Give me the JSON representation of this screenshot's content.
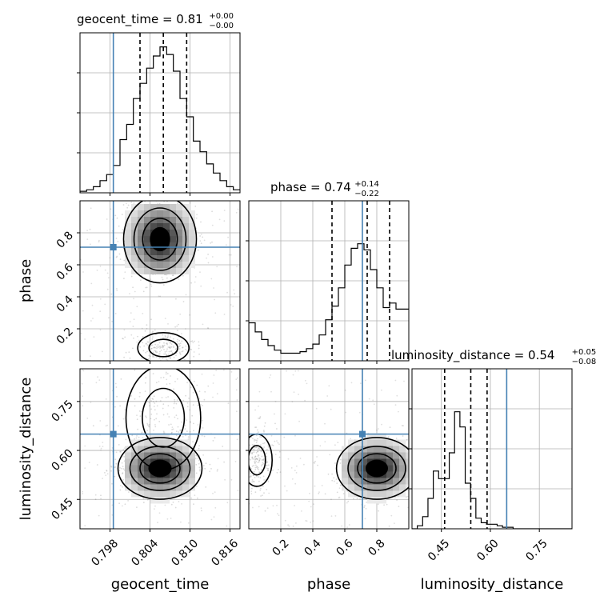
{
  "colors": {
    "truth": "#4682b4",
    "hist": "#000000",
    "grid": "#b0b0b0",
    "scatter": "#555555"
  },
  "chart_data": {
    "type": "corner",
    "grid": true,
    "truths": {
      "geocent_time": 0.7985,
      "phase": 0.71,
      "luminosity_distance": 0.65
    },
    "params": [
      {
        "name": "geocent_time",
        "xlabel": "geocent_time",
        "title_prefix": "geocent_time = ",
        "title_value": "0.81",
        "title_plus": "+0.00",
        "title_minus": "−0.00",
        "range": [
          0.7935,
          0.8175
        ],
        "ticks": [
          0.798,
          0.804,
          0.81,
          0.816
        ],
        "tick_labels": [
          "0.798",
          "0.804",
          "0.810",
          "0.816"
        ],
        "quantiles": [
          0.8025,
          0.806,
          0.8095
        ],
        "hist": {
          "start": 0.7935,
          "bin": 0.001,
          "counts": [
            0.01,
            0.02,
            0.04,
            0.08,
            0.12,
            0.18,
            0.35,
            0.45,
            0.62,
            0.72,
            0.82,
            0.9,
            0.96,
            0.91,
            0.8,
            0.62,
            0.5,
            0.34,
            0.27,
            0.19,
            0.13,
            0.08,
            0.04,
            0.02
          ]
        }
      },
      {
        "name": "phase",
        "xlabel": "phase",
        "ylabel": "phase",
        "title_prefix": "phase = ",
        "title_value": "0.74",
        "title_plus": "+0.14",
        "title_minus": "−0.22",
        "range": [
          0.0,
          1.0
        ],
        "ticks": [
          0.2,
          0.4,
          0.6,
          0.8
        ],
        "tick_labels": [
          "0.2",
          "0.4",
          "0.6",
          "0.8"
        ],
        "quantiles": [
          0.52,
          0.74,
          0.88
        ],
        "hist": {
          "start": 0.0,
          "bin": 0.04,
          "counts": [
            0.25,
            0.19,
            0.14,
            0.1,
            0.07,
            0.05,
            0.05,
            0.05,
            0.06,
            0.08,
            0.11,
            0.17,
            0.27,
            0.36,
            0.48,
            0.63,
            0.74,
            0.77,
            0.73,
            0.6,
            0.48,
            0.35,
            0.38,
            0.34,
            0.34
          ]
        }
      },
      {
        "name": "luminosity_distance",
        "xlabel": "luminosity_distance",
        "ylabel": "luminosity_distance",
        "title_prefix": "luminosity_distance = ",
        "title_value": "0.54",
        "title_plus": "+0.05",
        "title_minus": "−0.08",
        "range": [
          0.36,
          0.85
        ],
        "ticks": [
          0.45,
          0.6,
          0.75
        ],
        "tick_labels": [
          "0.45",
          "0.60",
          "0.75"
        ],
        "quantiles": [
          0.46,
          0.54,
          0.59
        ],
        "hist": {
          "start": 0.36,
          "bin": 0.0163,
          "counts": [
            0.0,
            0.02,
            0.08,
            0.2,
            0.38,
            0.33,
            0.33,
            0.5,
            0.77,
            0.67,
            0.3,
            0.2,
            0.07,
            0.04,
            0.03,
            0.03,
            0.02,
            0.01,
            0.01,
            0.0,
            0.0,
            0.0,
            0.0,
            0.0,
            0.0,
            0.0,
            0.0,
            0.0,
            0.0,
            0.0
          ]
        }
      }
    ],
    "pairs": [
      {
        "x": "geocent_time",
        "y": "phase",
        "blobs": [
          {
            "cx": 0.8055,
            "cy": 0.76,
            "sx": 0.0026,
            "sy": 0.13,
            "w": 1.0
          },
          {
            "cx": 0.806,
            "cy": 0.08,
            "sx": 0.0024,
            "sy": 0.06,
            "w": 0.3
          }
        ]
      },
      {
        "x": "geocent_time",
        "y": "luminosity_distance",
        "blobs": [
          {
            "cx": 0.8055,
            "cy": 0.545,
            "sx": 0.003,
            "sy": 0.045,
            "w": 1.0
          },
          {
            "cx": 0.806,
            "cy": 0.7,
            "sx": 0.0035,
            "sy": 0.1,
            "w": 0.3
          }
        ]
      },
      {
        "x": "phase",
        "y": "luminosity_distance",
        "blobs": [
          {
            "cx": 0.8,
            "cy": 0.545,
            "sx": 0.12,
            "sy": 0.045,
            "w": 1.0
          },
          {
            "cx": 0.05,
            "cy": 0.57,
            "sx": 0.06,
            "sy": 0.05,
            "w": 0.35
          }
        ]
      }
    ]
  }
}
